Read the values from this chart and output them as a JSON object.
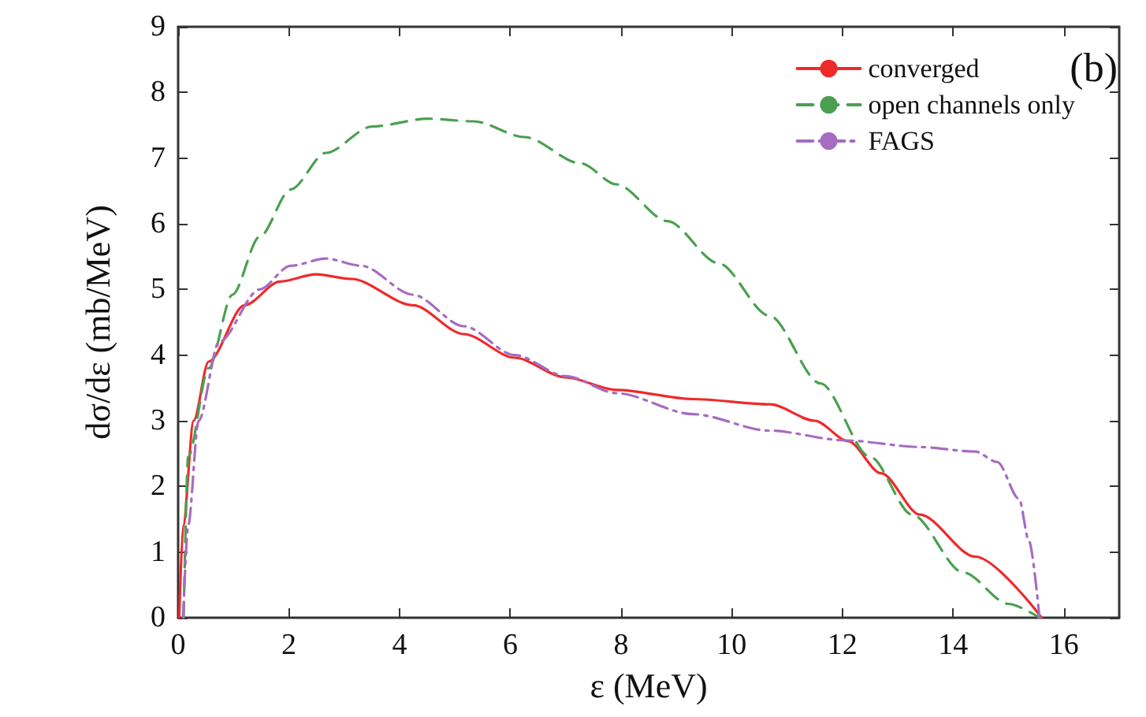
{
  "chart_data": {
    "type": "line",
    "xlabel": "ε (MeV)",
    "ylabel": "dσ/dε (mb/MeV)",
    "annotations": [
      "(b)"
    ],
    "xlim": [
      0,
      17
    ],
    "xticks": [
      0,
      2,
      4,
      6,
      8,
      10,
      12,
      14,
      16
    ],
    "ylim": [
      0,
      9
    ],
    "yticks": [
      0,
      1,
      2,
      3,
      4,
      5,
      6,
      7,
      8,
      9
    ],
    "grid": false,
    "legend": "top right",
    "marker": "none",
    "series": [
      {
        "name": "converged",
        "color": "#ee2a2a",
        "line_style": "solid",
        "x": [
          0.02,
          0.09,
          0.28,
          0.55,
          1.2,
          1.84,
          2.49,
          3.13,
          4.24,
          5.16,
          6.08,
          7.0,
          7.92,
          9.3,
          10.7,
          11.5,
          12.1,
          12.7,
          13.4,
          14.4,
          15.6
        ],
        "values": [
          0,
          1.4,
          3.0,
          3.9,
          4.76,
          5.12,
          5.23,
          5.16,
          4.76,
          4.32,
          3.96,
          3.66,
          3.47,
          3.33,
          3.25,
          3.0,
          2.69,
          2.2,
          1.57,
          0.93,
          0
        ]
      },
      {
        "name": "open channels only",
        "color": "#4aa050",
        "line_style": "dashed",
        "x": [
          0.1,
          0.18,
          0.55,
          0.98,
          1.47,
          2.03,
          2.67,
          3.5,
          4.51,
          5.34,
          6.26,
          7.27,
          7.92,
          8.84,
          9.76,
          10.68,
          11.6,
          12.5,
          13.26,
          14.18,
          15.0,
          15.56
        ],
        "values": [
          0,
          2.45,
          3.8,
          4.92,
          5.8,
          6.52,
          7.08,
          7.48,
          7.6,
          7.56,
          7.32,
          6.92,
          6.6,
          6.04,
          5.4,
          4.6,
          3.57,
          2.45,
          1.57,
          0.69,
          0.21,
          0
        ]
      },
      {
        "name": "FAGS",
        "color": "#a66cc0",
        "line_style": "dashdot",
        "x": [
          0.09,
          0.18,
          0.37,
          0.74,
          1.47,
          2.03,
          2.67,
          3.31,
          4.24,
          5.16,
          6.08,
          7.0,
          7.92,
          9.3,
          10.68,
          12.06,
          13.4,
          14.4,
          14.8,
          15.19,
          15.37,
          15.56
        ],
        "values": [
          0,
          1.4,
          3.0,
          4.2,
          5.0,
          5.36,
          5.47,
          5.36,
          4.92,
          4.44,
          4.0,
          3.68,
          3.42,
          3.1,
          2.85,
          2.7,
          2.6,
          2.53,
          2.37,
          1.81,
          1.17,
          0
        ]
      }
    ]
  }
}
